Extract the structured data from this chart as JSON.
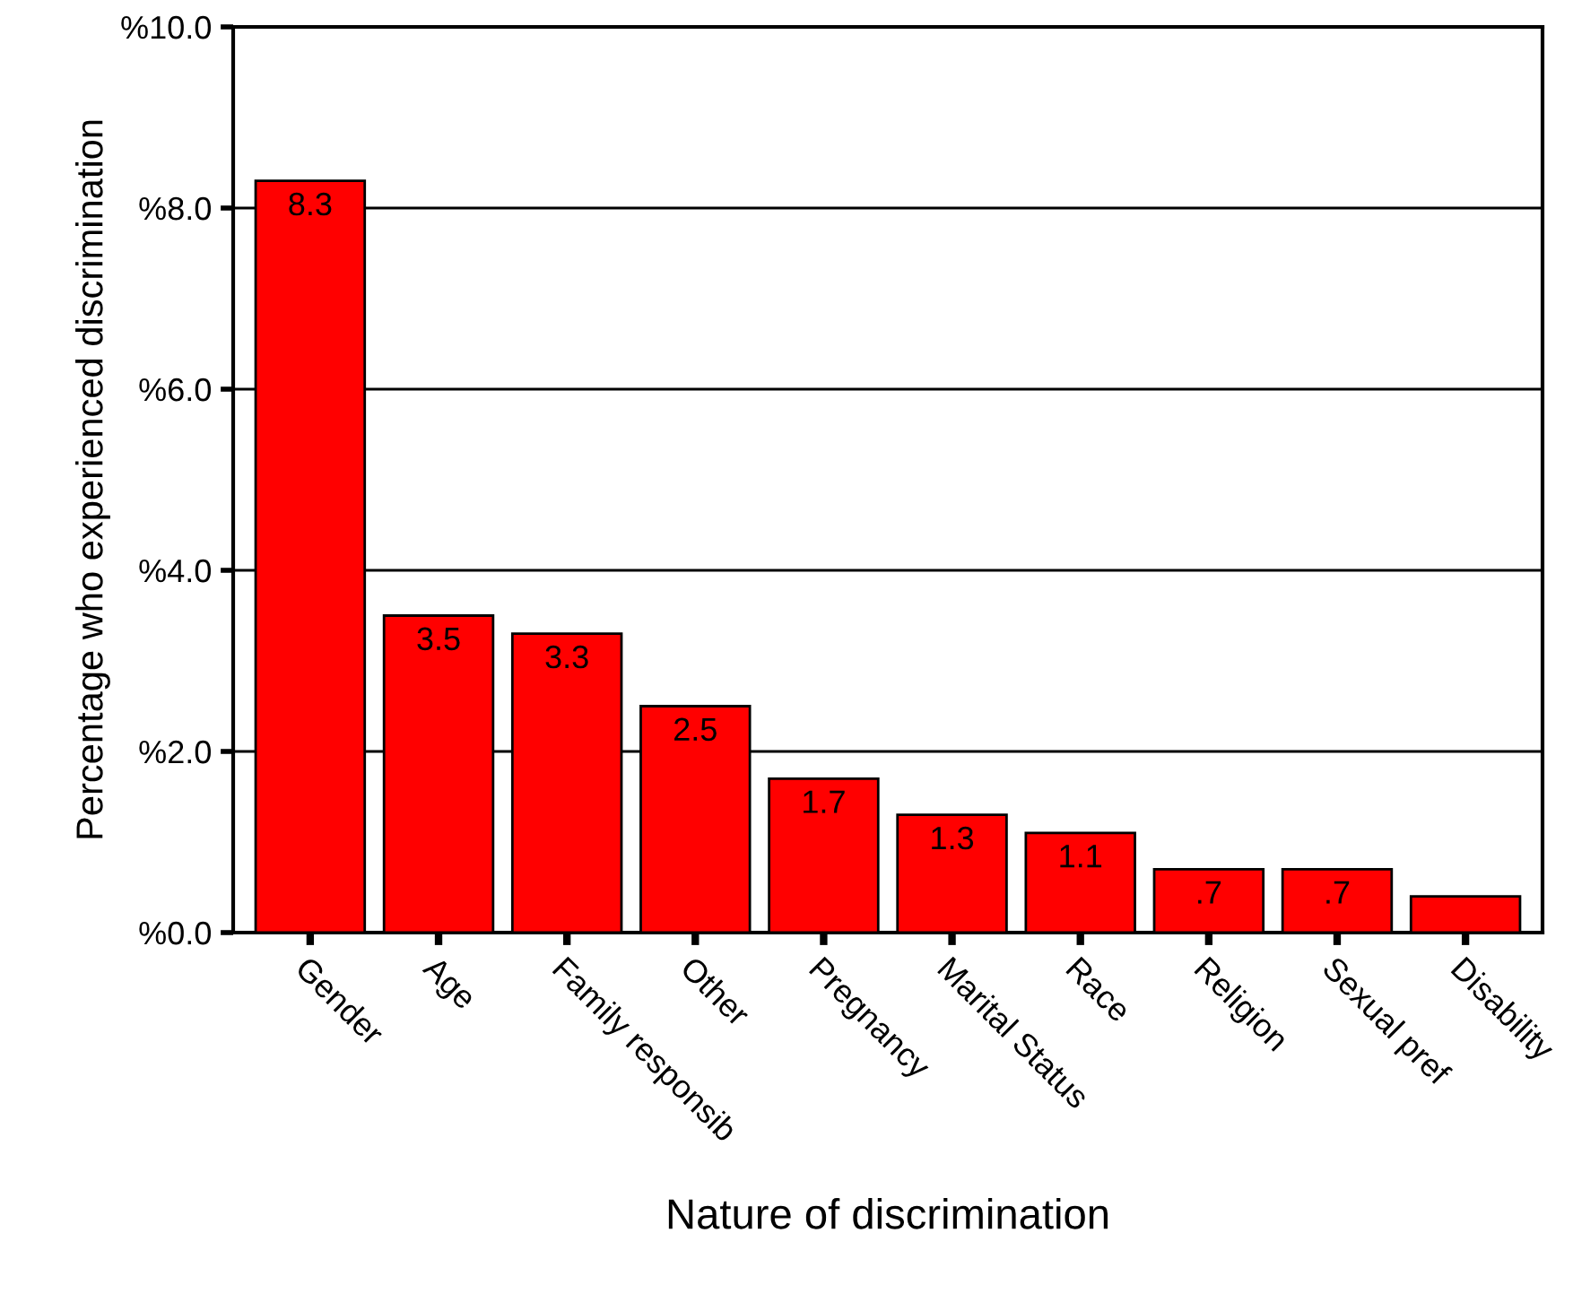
{
  "chart_data": {
    "type": "bar",
    "xlabel": "Nature of discrimination",
    "ylabel": "Percentage who experienced discrimination",
    "categories": [
      "Gender",
      "Age",
      "Family responsib",
      "Other",
      "Pregnancy",
      "Marital Status",
      "Race",
      "Religion",
      "Sexual pref",
      "Disability"
    ],
    "values": [
      8.3,
      3.5,
      3.3,
      2.5,
      1.7,
      1.3,
      1.1,
      0.7,
      0.7,
      0.4
    ],
    "value_labels": [
      "8.3",
      "3.5",
      "3.3",
      "2.5",
      "1.7",
      "1.3",
      "1.1",
      ".7",
      ".7",
      null
    ],
    "color": "#ff0000",
    "ylim": [
      0,
      10
    ],
    "yticks": [
      {
        "value": 0,
        "label": "%0.0"
      },
      {
        "value": 2,
        "label": "%2.0"
      },
      {
        "value": 4,
        "label": "%4.0"
      },
      {
        "value": 6,
        "label": "%6.0"
      },
      {
        "value": 8,
        "label": "%8.0"
      },
      {
        "value": 10,
        "label": "%10.0"
      }
    ],
    "grid": "y"
  }
}
